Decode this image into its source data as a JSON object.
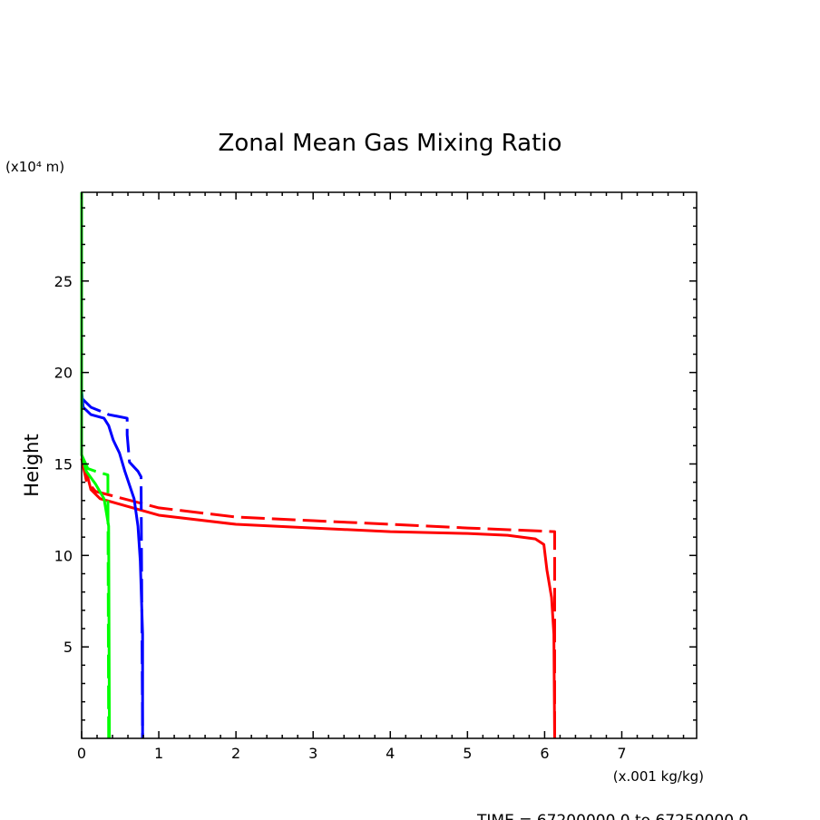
{
  "chart_data": {
    "type": "line",
    "title": "Zonal Mean Gas Mixing Ratio",
    "ylabel": "Height",
    "yunits": "(x10⁴ m)",
    "xunits": "(x.001 kg/kg)",
    "footer": "TIME = 67200000.0 to 67250000.0",
    "xlim": [
      0,
      7.97
    ],
    "ylim": [
      0,
      29.85
    ],
    "xticks": [
      "0",
      "1",
      "2",
      "3",
      "4",
      "5",
      "6",
      "7"
    ],
    "yticks": [
      "5",
      "10",
      "15",
      "20",
      "25"
    ],
    "grid": false,
    "series": [
      {
        "name": "red-solid",
        "color": "#ff0000",
        "dash": false,
        "points": [
          [
            0,
            15.3
          ],
          [
            0.06,
            14.6
          ],
          [
            0.12,
            13.6
          ],
          [
            0.24,
            13.1
          ],
          [
            1.0,
            12.2
          ],
          [
            2.0,
            11.7
          ],
          [
            3.0,
            11.5
          ],
          [
            4.0,
            11.3
          ],
          [
            5.0,
            11.2
          ],
          [
            5.52,
            11.1
          ],
          [
            5.88,
            10.9
          ],
          [
            5.99,
            10.6
          ],
          [
            6.03,
            9.2
          ],
          [
            6.09,
            7.7
          ],
          [
            6.12,
            5.7
          ],
          [
            6.13,
            0
          ]
        ]
      },
      {
        "name": "red-dashed",
        "color": "#ff0000",
        "dash": true,
        "points": [
          [
            0,
            15.3
          ],
          [
            0.06,
            14.1
          ],
          [
            0.18,
            13.5
          ],
          [
            1.0,
            12.6
          ],
          [
            2.0,
            12.1
          ],
          [
            3.0,
            11.9
          ],
          [
            4.0,
            11.7
          ],
          [
            5.0,
            11.5
          ],
          [
            6.13,
            11.3
          ],
          [
            6.13,
            0
          ]
        ]
      },
      {
        "name": "blue-solid",
        "color": "#0000ff",
        "dash": false,
        "points": [
          [
            0,
            19.0
          ],
          [
            0.02,
            18.1
          ],
          [
            0.12,
            17.7
          ],
          [
            0.29,
            17.5
          ],
          [
            0.35,
            17.1
          ],
          [
            0.41,
            16.3
          ],
          [
            0.49,
            15.6
          ],
          [
            0.56,
            14.6
          ],
          [
            0.68,
            13.1
          ],
          [
            0.73,
            11.6
          ],
          [
            0.76,
            9.7
          ],
          [
            0.79,
            5.7
          ],
          [
            0.79,
            0
          ]
        ]
      },
      {
        "name": "blue-dashed",
        "color": "#0000ff",
        "dash": true,
        "points": [
          [
            0,
            18.6
          ],
          [
            0.12,
            18.1
          ],
          [
            0.35,
            17.7
          ],
          [
            0.59,
            17.5
          ],
          [
            0.59,
            16.6
          ],
          [
            0.62,
            15.1
          ],
          [
            0.73,
            14.6
          ],
          [
            0.77,
            14.3
          ],
          [
            0.79,
            0
          ]
        ]
      },
      {
        "name": "green-solid",
        "color": "#00ff00",
        "dash": false,
        "points": [
          [
            0,
            29.85
          ],
          [
            0,
            15.5
          ],
          [
            0.06,
            14.6
          ],
          [
            0.18,
            13.9
          ],
          [
            0.29,
            13.1
          ],
          [
            0.35,
            11.6
          ],
          [
            0.36,
            0
          ]
        ]
      },
      {
        "name": "green-dashed",
        "color": "#00ff00",
        "dash": true,
        "points": [
          [
            0,
            15.5
          ],
          [
            0.08,
            14.75
          ],
          [
            0.18,
            14.6
          ],
          [
            0.34,
            14.4
          ],
          [
            0.35,
            0
          ]
        ]
      }
    ]
  }
}
